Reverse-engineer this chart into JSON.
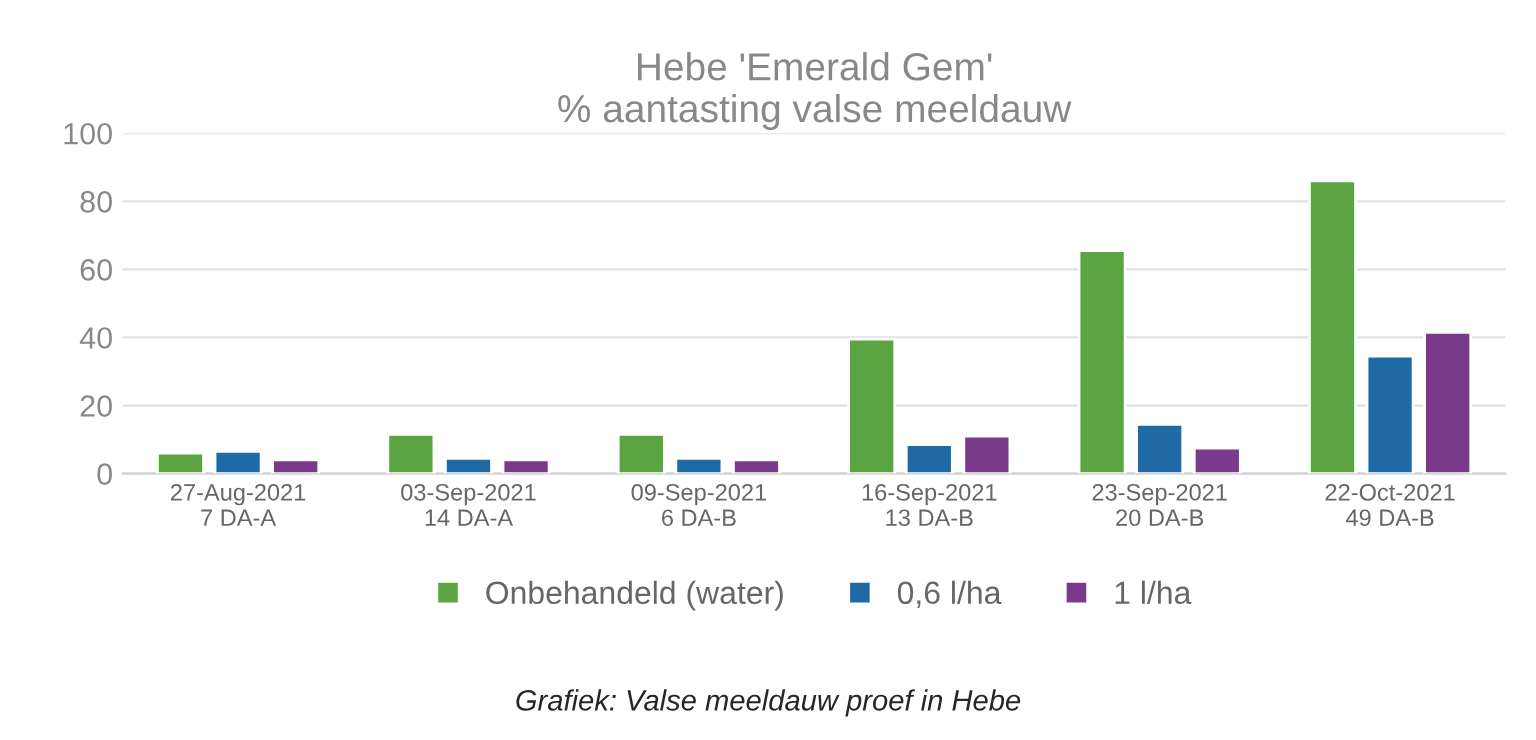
{
  "chart_data": {
    "type": "bar",
    "title": "Hebe 'Emerald Gem'\n% aantasting valse meeldauw",
    "categories": [
      "27-Aug-2021\n7 DA-A",
      "03-Sep-2021\n14 DA-A",
      "09-Sep-2021\n6 DA-B",
      "16-Sep-2021\n13 DA-B",
      "23-Sep-2021\n20 DA-B",
      "22-Oct-2021\n49 DA-B"
    ],
    "series": [
      {
        "name": "Onbehandeld (water)",
        "color": "#5aa541",
        "values": [
          6,
          11.5,
          11.5,
          39.5,
          65.5,
          86
        ]
      },
      {
        "name": "0,6 l/ha",
        "color": "#1f6aa5",
        "values": [
          6.5,
          4.5,
          4.5,
          8.5,
          14.5,
          34.5
        ]
      },
      {
        "name": "1 l/ha",
        "color": "#7a3a8c",
        "values": [
          4,
          4,
          4,
          11,
          7.5,
          41.5
        ]
      }
    ],
    "ylim": [
      0,
      100
    ],
    "yticks": [
      0,
      20,
      40,
      60,
      80,
      100
    ],
    "grid": "y",
    "legend": "bottom",
    "annotations": [
      "Grafiek: Valse meeldauw proef in Hebe"
    ]
  }
}
